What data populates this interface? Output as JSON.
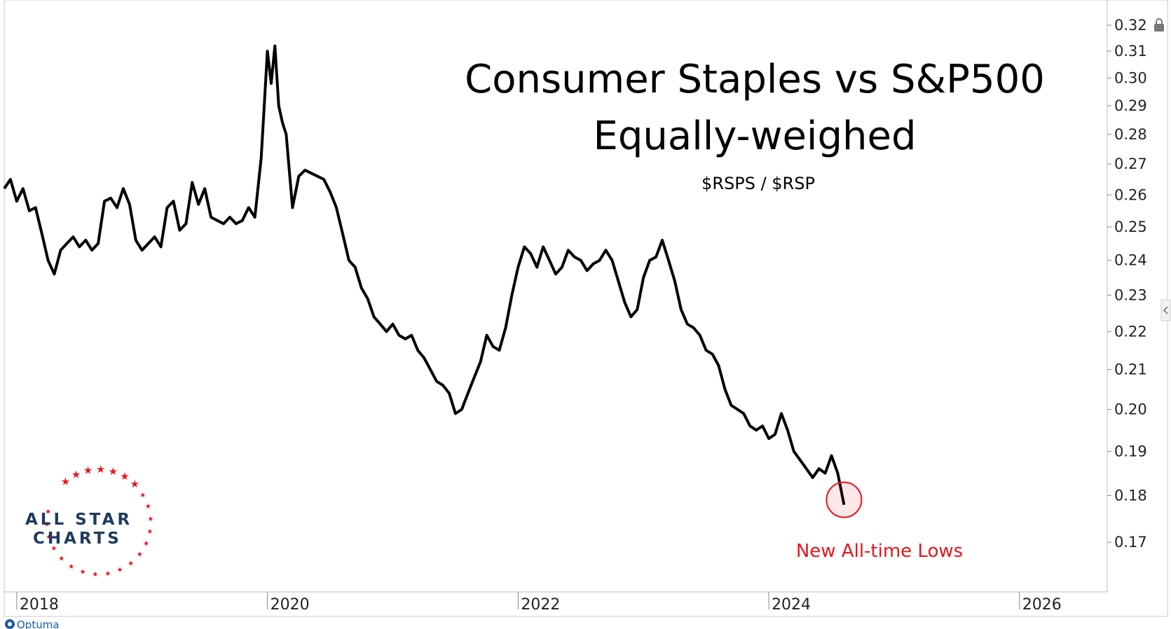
{
  "chart_data": {
    "type": "line",
    "title_line1": "Consumer Staples vs S&P500",
    "title_line2": "Equally-weighed",
    "subtitle": "$RSPS / $RSP",
    "annotation": "New All-time Lows",
    "x_ticks": [
      "2018",
      "2020",
      "2022",
      "2024",
      "2026"
    ],
    "y_ticks": [
      "0.17",
      "0.18",
      "0.19",
      "0.20",
      "0.21",
      "0.22",
      "0.23",
      "0.24",
      "0.25",
      "0.26",
      "0.27",
      "0.28",
      "0.29",
      "0.30",
      "0.31",
      "0.32"
    ],
    "y_scale": "log",
    "ylim": [
      0.16,
      0.33
    ],
    "xlim": [
      2017.9,
      2026.7
    ],
    "line_color": "#000000",
    "annotation_color": "#e8141b",
    "series": [
      {
        "x": [
          2017.9,
          2017.95,
          2018.0,
          2018.05,
          2018.1,
          2018.15,
          2018.2,
          2018.25,
          2018.3,
          2018.35,
          2018.4,
          2018.45,
          2018.5,
          2018.55,
          2018.6,
          2018.65,
          2018.7,
          2018.75,
          2018.8,
          2018.85,
          2018.9,
          2018.95,
          2019.0,
          2019.05,
          2019.1,
          2019.15,
          2019.2,
          2019.25,
          2019.3,
          2019.35,
          2019.4,
          2019.45,
          2019.5,
          2019.55,
          2019.6,
          2019.65,
          2019.7,
          2019.75,
          2019.8,
          2019.85,
          2019.9,
          2019.95,
          2020.0,
          2020.03,
          2020.06,
          2020.09,
          2020.12,
          2020.15,
          2020.2,
          2020.25,
          2020.3,
          2020.35,
          2020.4,
          2020.45,
          2020.5,
          2020.55,
          2020.6,
          2020.65,
          2020.7,
          2020.75,
          2020.8,
          2020.85,
          2020.9,
          2020.95,
          2021.0,
          2021.05,
          2021.1,
          2021.15,
          2021.2,
          2021.25,
          2021.3,
          2021.35,
          2021.4,
          2021.45,
          2021.5,
          2021.55,
          2021.6,
          2021.65,
          2021.7,
          2021.75,
          2021.8,
          2021.85,
          2021.9,
          2021.95,
          2022.0,
          2022.05,
          2022.1,
          2022.15,
          2022.2,
          2022.25,
          2022.3,
          2022.35,
          2022.4,
          2022.45,
          2022.5,
          2022.55,
          2022.6,
          2022.65,
          2022.7,
          2022.75,
          2022.8,
          2022.85,
          2022.9,
          2022.95,
          2023.0,
          2023.05,
          2023.1,
          2023.15,
          2023.2,
          2023.25,
          2023.3,
          2023.35,
          2023.4,
          2023.45,
          2023.5,
          2023.55,
          2023.6,
          2023.65,
          2023.7,
          2023.75,
          2023.8,
          2023.85,
          2023.9,
          2023.95,
          2024.0,
          2024.05,
          2024.1,
          2024.15,
          2024.2,
          2024.25,
          2024.3,
          2024.35,
          2024.4,
          2024.45,
          2024.5,
          2024.55,
          2024.6
        ],
        "values": [
          0.262,
          0.265,
          0.258,
          0.262,
          0.255,
          0.256,
          0.248,
          0.24,
          0.236,
          0.243,
          0.245,
          0.247,
          0.244,
          0.246,
          0.243,
          0.245,
          0.258,
          0.259,
          0.256,
          0.262,
          0.257,
          0.246,
          0.243,
          0.245,
          0.247,
          0.244,
          0.256,
          0.258,
          0.249,
          0.251,
          0.264,
          0.257,
          0.262,
          0.253,
          0.252,
          0.251,
          0.253,
          0.251,
          0.252,
          0.256,
          0.253,
          0.272,
          0.31,
          0.298,
          0.312,
          0.29,
          0.284,
          0.28,
          0.256,
          0.266,
          0.268,
          0.267,
          0.266,
          0.265,
          0.261,
          0.256,
          0.248,
          0.24,
          0.238,
          0.232,
          0.229,
          0.224,
          0.222,
          0.22,
          0.222,
          0.219,
          0.218,
          0.219,
          0.215,
          0.213,
          0.21,
          0.207,
          0.206,
          0.204,
          0.199,
          0.2,
          0.204,
          0.208,
          0.212,
          0.219,
          0.216,
          0.215,
          0.221,
          0.23,
          0.238,
          0.244,
          0.242,
          0.238,
          0.244,
          0.24,
          0.236,
          0.238,
          0.243,
          0.241,
          0.24,
          0.237,
          0.239,
          0.24,
          0.243,
          0.24,
          0.234,
          0.228,
          0.224,
          0.226,
          0.235,
          0.24,
          0.241,
          0.246,
          0.24,
          0.234,
          0.226,
          0.222,
          0.221,
          0.219,
          0.215,
          0.214,
          0.211,
          0.205,
          0.201,
          0.2,
          0.199,
          0.196,
          0.195,
          0.196,
          0.193,
          0.194,
          0.199,
          0.195,
          0.19,
          0.188,
          0.186,
          0.184,
          0.186,
          0.185,
          0.189,
          0.185,
          0.178
        ]
      }
    ]
  },
  "branding": {
    "logo_line1": "ALL STAR",
    "logo_line2": "CHARTS",
    "provider": "Optuma"
  }
}
